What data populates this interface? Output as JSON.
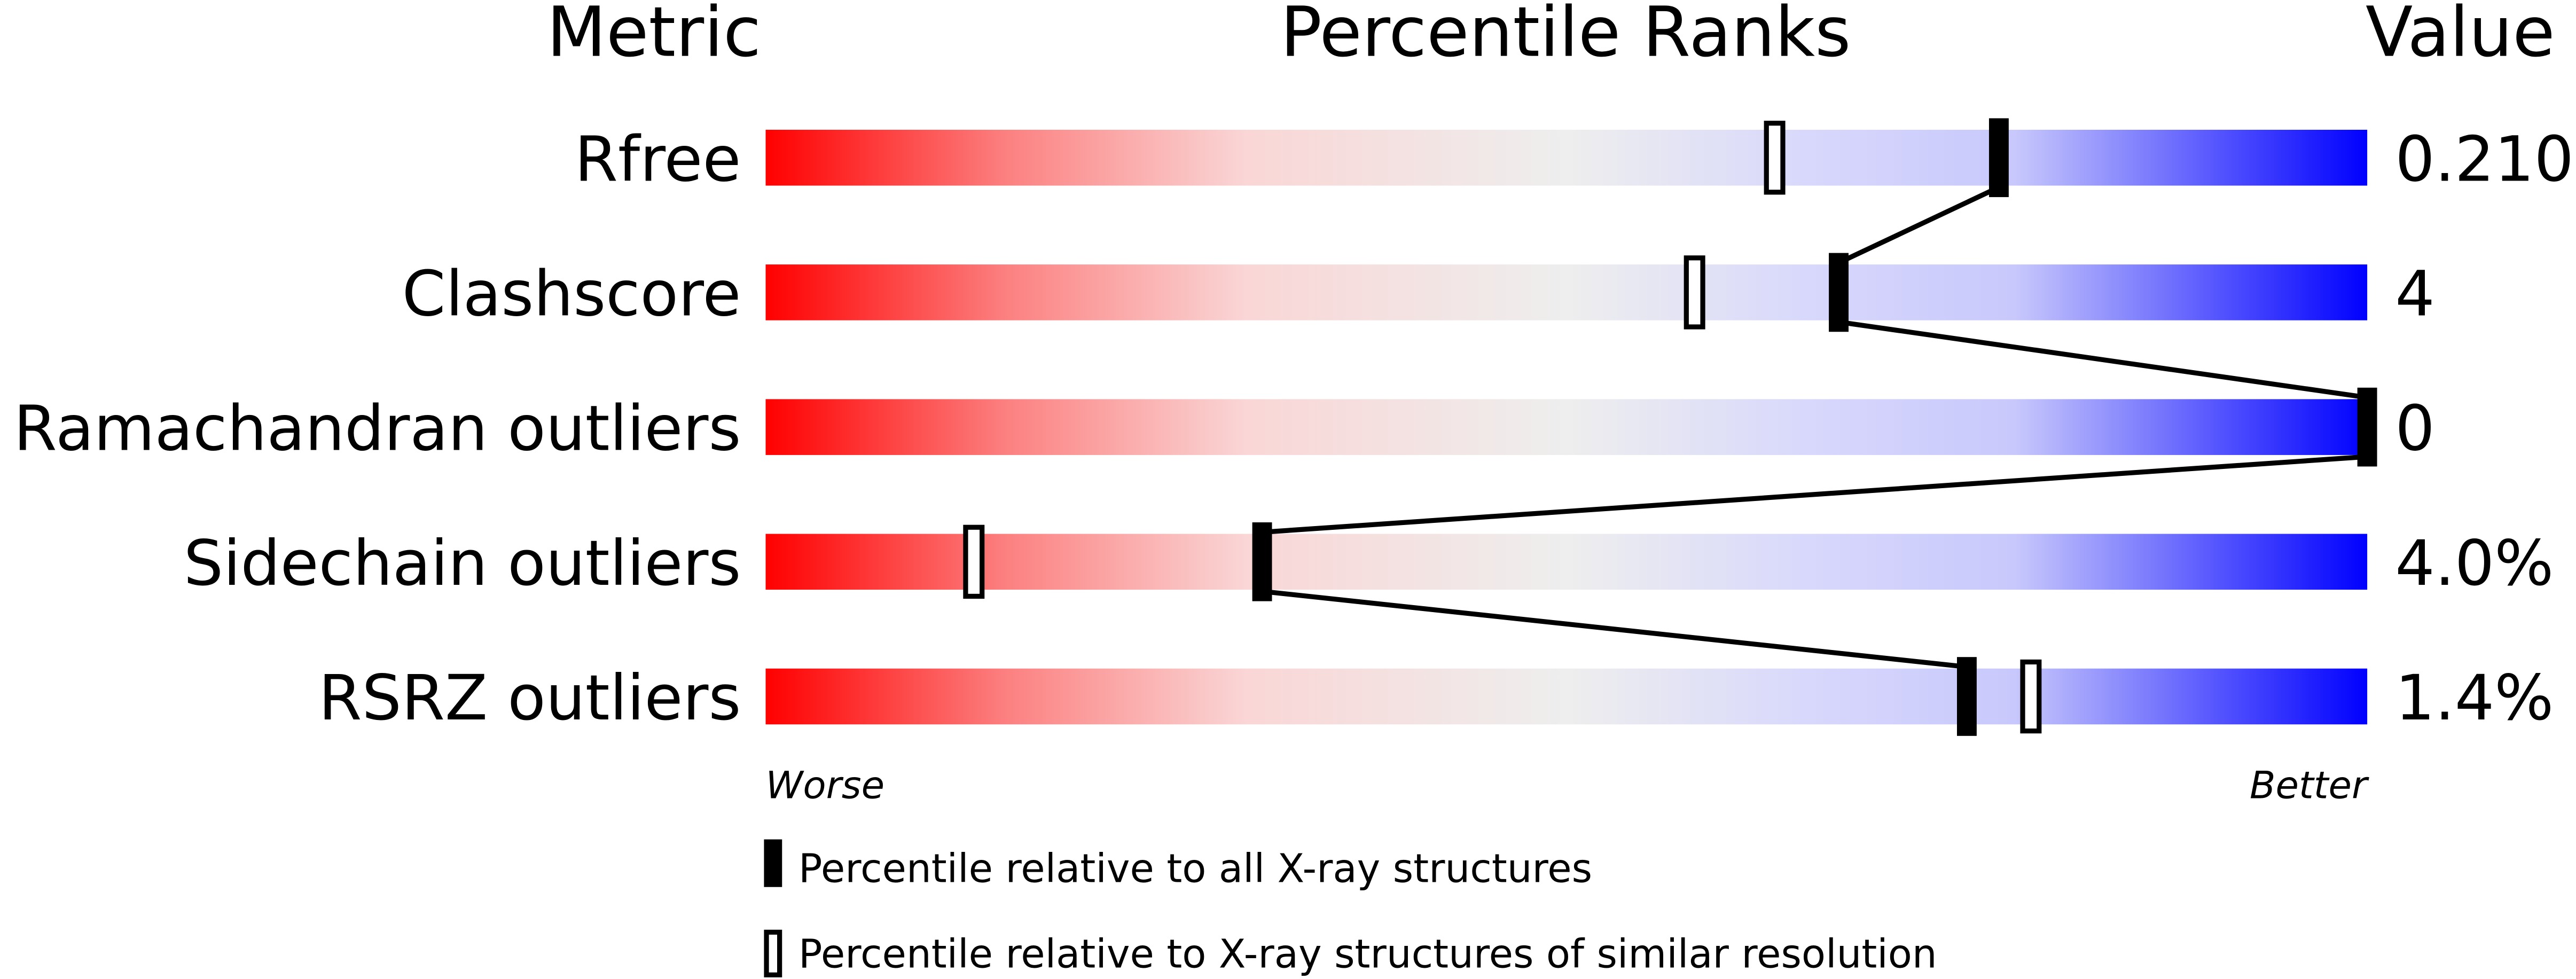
{
  "chart_data": {
    "type": "percentile-slider",
    "headers": {
      "metric": "Metric",
      "ranks": "Percentile Ranks",
      "value": "Value"
    },
    "xlim": [
      0,
      100
    ],
    "axis_labels": {
      "left": "Worse",
      "right": "Better"
    },
    "rows": [
      {
        "metric": "Rfree",
        "value": "0.210",
        "percentile_all": 77,
        "percentile_similar": 63
      },
      {
        "metric": "Clashscore",
        "value": "4",
        "percentile_all": 67,
        "percentile_similar": 58
      },
      {
        "metric": "Ramachandran outliers",
        "value": "0",
        "percentile_all": 100,
        "percentile_similar": 100
      },
      {
        "metric": "Sidechain outliers",
        "value": "4.0%",
        "percentile_all": 31,
        "percentile_similar": 13
      },
      {
        "metric": "RSRZ outliers",
        "value": "1.4%",
        "percentile_all": 75,
        "percentile_similar": 79
      }
    ],
    "legend": [
      {
        "label": "Percentile relative to all X-ray structures",
        "marker": "filled"
      },
      {
        "label": "Percentile relative to X-ray structures of similar resolution",
        "marker": "open"
      }
    ],
    "colors": {
      "worse": "#ff0000",
      "middle": "#eeeeee",
      "better": "#0000ff",
      "marker": "#000000"
    }
  }
}
